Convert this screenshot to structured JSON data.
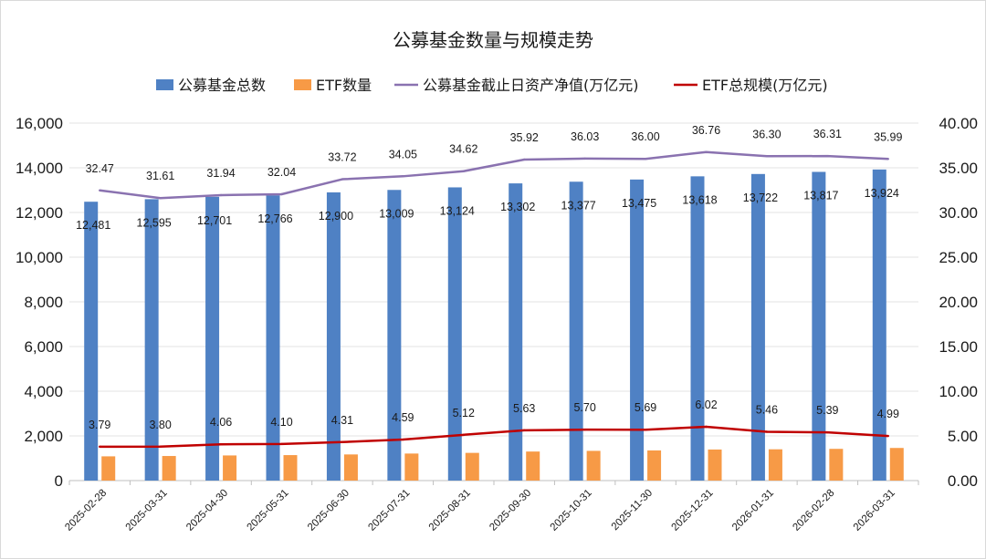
{
  "chart_data": {
    "type": "bar",
    "title": "公募基金数量与规模走势",
    "categories": [
      "2025-02-28",
      "2025-03-31",
      "2025-04-30",
      "2025-05-31",
      "2025-06-30",
      "2025-07-31",
      "2025-08-31",
      "2025-09-30",
      "2025-10-31",
      "2025-11-30",
      "2025-12-31",
      "2026-01-31",
      "2026-02-28",
      "2026-03-31"
    ],
    "y_left": {
      "min": 0,
      "max": 16000,
      "step": 2000,
      "ticks": [
        "0",
        "2,000",
        "4,000",
        "6,000",
        "8,000",
        "10,000",
        "12,000",
        "14,000",
        "16,000"
      ]
    },
    "y_right": {
      "min": 0,
      "max": 40,
      "step": 5,
      "ticks": [
        "0.00",
        "5.00",
        "10.00",
        "15.00",
        "20.00",
        "25.00",
        "30.00",
        "35.00",
        "40.00"
      ]
    },
    "legend_position": "top",
    "series": [
      {
        "name": "公募基金总数",
        "kind": "bar",
        "axis": "left",
        "color": "#4f81c4",
        "values": [
          12481,
          12595,
          12701,
          12766,
          12900,
          13009,
          13124,
          13302,
          13377,
          13475,
          13618,
          13722,
          13817,
          13924
        ],
        "labels": [
          "12,481",
          "12,595",
          "12,701",
          "12,766",
          "12,900",
          "13,009",
          "13,124",
          "13,302",
          "13,377",
          "13,475",
          "13,618",
          "13,722",
          "13,817",
          "13,924"
        ]
      },
      {
        "name": "ETF数量",
        "kind": "bar",
        "axis": "left",
        "color": "#f79a46",
        "values": [
          1085,
          1100,
          1125,
          1140,
          1170,
          1210,
          1240,
          1300,
          1330,
          1350,
          1390,
          1400,
          1420,
          1460
        ],
        "labels": []
      },
      {
        "name": "公募基金截止日资产净值(万亿元)",
        "kind": "line",
        "axis": "right",
        "color": "#8a72b0",
        "values": [
          32.47,
          31.61,
          31.94,
          32.04,
          33.72,
          34.05,
          34.62,
          35.92,
          36.03,
          36.0,
          36.76,
          36.3,
          36.31,
          35.99
        ],
        "labels": [
          "32.47",
          "31.61",
          "31.94",
          "32.04",
          "33.72",
          "34.05",
          "34.62",
          "35.92",
          "36.03",
          "36.00",
          "36.76",
          "36.30",
          "36.31",
          "35.99"
        ]
      },
      {
        "name": "ETF总规模(万亿元)",
        "kind": "line",
        "axis": "right",
        "color": "#c00000",
        "values": [
          3.79,
          3.8,
          4.06,
          4.1,
          4.31,
          4.59,
          5.12,
          5.63,
          5.7,
          5.69,
          6.02,
          5.46,
          5.39,
          4.99
        ],
        "labels": [
          "3.79",
          "3.80",
          "4.06",
          "4.10",
          "4.31",
          "4.59",
          "5.12",
          "5.63",
          "5.70",
          "5.69",
          "6.02",
          "5.46",
          "5.39",
          "4.99"
        ]
      }
    ]
  }
}
